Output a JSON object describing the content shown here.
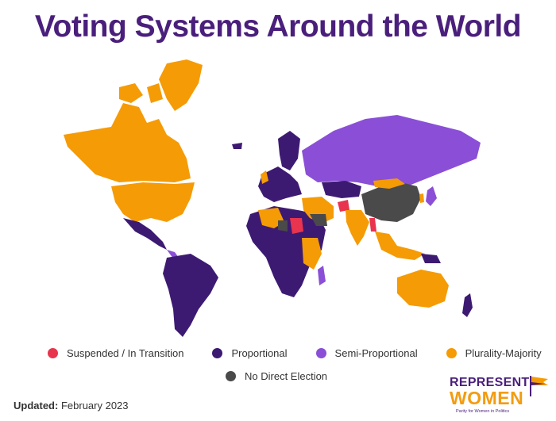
{
  "title": "Voting Systems Around the World",
  "colors": {
    "suspended": "#e8344e",
    "proportional": "#3d1a72",
    "semi_proportional": "#8a4fd6",
    "plurality_majority": "#f59b05",
    "no_direct": "#4a4a4a"
  },
  "legend": {
    "row1": [
      {
        "label": "Suspended / In Transition",
        "color": "#e8344e"
      },
      {
        "label": "Proportional",
        "color": "#3d1a72"
      },
      {
        "label": "Semi-Proportional",
        "color": "#8a4fd6"
      },
      {
        "label": "Plurality-Majority",
        "color": "#f59b05"
      }
    ],
    "row2": [
      {
        "label": "No Direct Election",
        "color": "#4a4a4a"
      }
    ]
  },
  "updated": {
    "label": "Updated:",
    "value": "February 2023"
  },
  "logo": {
    "line1": "REPRESENT",
    "line2": "WOMEN",
    "tagline": "Parity for Women in Politics"
  }
}
